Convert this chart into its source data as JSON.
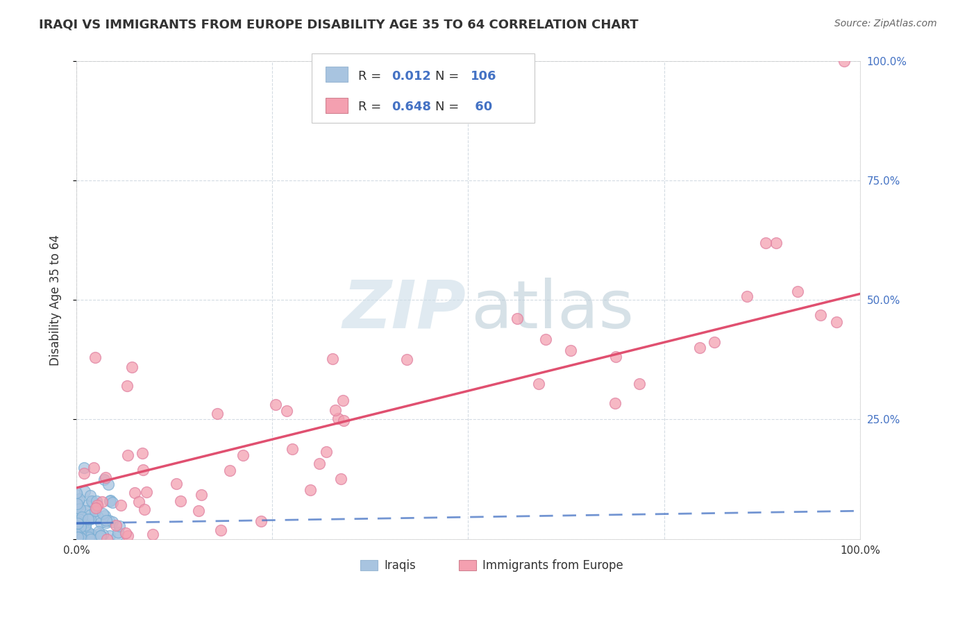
{
  "title": "IRAQI VS IMMIGRANTS FROM EUROPE DISABILITY AGE 35 TO 64 CORRELATION CHART",
  "source": "Source: ZipAtlas.com",
  "ylabel": "Disability Age 35 to 64",
  "iraqis_R": "0.012",
  "iraqis_N": "106",
  "europe_R": "0.648",
  "europe_N": "60",
  "iraqis_color": "#a8c4e0",
  "europe_color": "#f4a0b0",
  "iraqis_edge_color": "#7bafd4",
  "europe_edge_color": "#e080a0",
  "iraqis_line_color": "#4472c4",
  "europe_line_color": "#e05070",
  "watermark_zip_color": "#ccdde8",
  "watermark_atlas_color": "#bccdd8",
  "legend_value_color": "#4472c4",
  "legend_label_color": "#333333",
  "grid_color": "#d0d8e0",
  "background_color": "#ffffff",
  "right_tick_color": "#4472c4",
  "title_color": "#333333",
  "source_color": "#666666"
}
